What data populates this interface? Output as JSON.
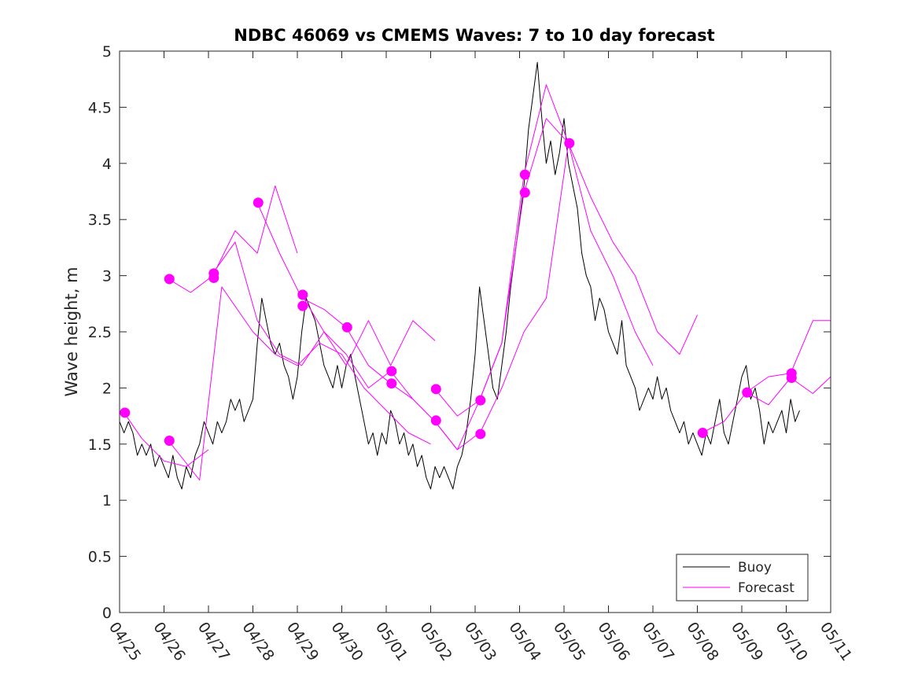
{
  "chart_data": {
    "type": "line",
    "title": "NDBC 46069 vs CMEMS Waves: 7 to 10 day forecast",
    "xlabel": "",
    "ylabel": "Wave height, m",
    "x_unit": "days since 04/25",
    "xlim": [
      0,
      16
    ],
    "ylim": [
      0,
      5
    ],
    "x_ticks": [
      {
        "x": 0,
        "label": "04/25"
      },
      {
        "x": 1,
        "label": "04/26"
      },
      {
        "x": 2,
        "label": "04/27"
      },
      {
        "x": 3,
        "label": "04/28"
      },
      {
        "x": 4,
        "label": "04/29"
      },
      {
        "x": 5,
        "label": "04/30"
      },
      {
        "x": 6,
        "label": "05/01"
      },
      {
        "x": 7,
        "label": "05/02"
      },
      {
        "x": 8,
        "label": "05/03"
      },
      {
        "x": 9,
        "label": "05/04"
      },
      {
        "x": 10,
        "label": "05/05"
      },
      {
        "x": 11,
        "label": "05/06"
      },
      {
        "x": 12,
        "label": "05/07"
      },
      {
        "x": 13,
        "label": "05/08"
      },
      {
        "x": 14,
        "label": "05/09"
      },
      {
        "x": 15,
        "label": "05/10"
      },
      {
        "x": 16,
        "label": "05/11"
      }
    ],
    "y_ticks": [
      {
        "y": 0,
        "label": "0"
      },
      {
        "y": 0.5,
        "label": "0.5"
      },
      {
        "y": 1,
        "label": "1"
      },
      {
        "y": 1.5,
        "label": "1.5"
      },
      {
        "y": 2,
        "label": "2"
      },
      {
        "y": 2.5,
        "label": "2.5"
      },
      {
        "y": 3,
        "label": "3"
      },
      {
        "y": 3.5,
        "label": "3.5"
      },
      {
        "y": 4,
        "label": "4"
      },
      {
        "y": 4.5,
        "label": "4.5"
      },
      {
        "y": 5,
        "label": "5"
      }
    ],
    "grid": false,
    "legend_position": "bottom-right",
    "legend": [
      {
        "label": "Buoy",
        "color": "#000000"
      },
      {
        "label": "Forecast",
        "color": "#ff00ff"
      }
    ],
    "colors": {
      "buoy": "#000000",
      "forecast": "#ff00ff",
      "axis": "#262626"
    },
    "series": [
      {
        "name": "Buoy",
        "color": "#000000",
        "x": [
          0,
          0.1,
          0.2,
          0.3,
          0.4,
          0.5,
          0.6,
          0.7,
          0.8,
          0.9,
          1.0,
          1.1,
          1.2,
          1.3,
          1.4,
          1.5,
          1.6,
          1.7,
          1.8,
          1.9,
          2.0,
          2.1,
          2.2,
          2.3,
          2.4,
          2.5,
          2.6,
          2.7,
          2.8,
          2.9,
          3.0,
          3.1,
          3.2,
          3.3,
          3.4,
          3.5,
          3.6,
          3.7,
          3.8,
          3.9,
          4.0,
          4.1,
          4.2,
          4.3,
          4.4,
          4.5,
          4.6,
          4.7,
          4.8,
          4.9,
          5.0,
          5.1,
          5.2,
          5.3,
          5.4,
          5.5,
          5.6,
          5.7,
          5.8,
          5.9,
          6.0,
          6.1,
          6.2,
          6.3,
          6.4,
          6.5,
          6.6,
          6.7,
          6.8,
          6.9,
          7.0,
          7.1,
          7.2,
          7.3,
          7.4,
          7.5,
          7.6,
          7.7,
          7.8,
          7.9,
          8.0,
          8.1,
          8.2,
          8.3,
          8.4,
          8.5,
          8.6,
          8.7,
          8.8,
          8.9,
          9.0,
          9.1,
          9.2,
          9.3,
          9.4,
          9.5,
          9.6,
          9.7,
          9.8,
          9.9,
          10.0,
          10.1,
          10.2,
          10.3,
          10.4,
          10.5,
          10.6,
          10.7,
          10.8,
          10.9,
          11.0,
          11.1,
          11.2,
          11.3,
          11.4,
          11.5,
          11.6,
          11.7,
          11.8,
          11.9,
          12.0,
          12.1,
          12.2,
          12.3,
          12.4,
          12.5,
          12.6,
          12.7,
          12.8,
          12.9,
          13.0,
          13.1,
          13.2,
          13.3,
          13.4,
          13.5,
          13.6,
          13.7,
          13.8,
          13.9,
          14.0,
          14.1,
          14.2,
          14.3,
          14.4,
          14.5,
          14.6,
          14.7,
          14.8,
          14.9,
          15.0,
          15.1,
          15.2,
          15.3
        ],
        "values": [
          1.7,
          1.6,
          1.7,
          1.6,
          1.4,
          1.5,
          1.4,
          1.5,
          1.3,
          1.4,
          1.3,
          1.2,
          1.4,
          1.2,
          1.1,
          1.3,
          1.2,
          1.4,
          1.5,
          1.7,
          1.6,
          1.5,
          1.7,
          1.6,
          1.7,
          1.9,
          1.8,
          1.9,
          1.7,
          1.8,
          1.9,
          2.4,
          2.8,
          2.6,
          2.4,
          2.3,
          2.4,
          2.2,
          2.1,
          1.9,
          2.1,
          2.5,
          2.8,
          2.7,
          2.6,
          2.4,
          2.2,
          2.1,
          2.0,
          2.2,
          2.0,
          2.2,
          2.3,
          2.1,
          1.9,
          1.7,
          1.5,
          1.6,
          1.4,
          1.6,
          1.5,
          1.8,
          1.7,
          1.5,
          1.6,
          1.4,
          1.5,
          1.3,
          1.4,
          1.2,
          1.1,
          1.3,
          1.2,
          1.3,
          1.2,
          1.1,
          1.3,
          1.4,
          1.6,
          1.9,
          2.3,
          2.9,
          2.6,
          2.3,
          2.0,
          1.9,
          2.2,
          2.5,
          2.9,
          3.2,
          3.5,
          3.8,
          4.3,
          4.6,
          4.9,
          4.4,
          4.0,
          4.2,
          3.9,
          4.1,
          4.4,
          4.0,
          3.8,
          3.6,
          3.2,
          3.0,
          2.9,
          2.6,
          2.8,
          2.7,
          2.5,
          2.4,
          2.3,
          2.6,
          2.2,
          2.1,
          2.0,
          1.8,
          1.9,
          2.0,
          1.9,
          2.1,
          1.9,
          2.0,
          1.8,
          1.7,
          1.6,
          1.7,
          1.5,
          1.6,
          1.5,
          1.4,
          1.6,
          1.5,
          1.7,
          1.9,
          1.6,
          1.5,
          1.7,
          1.9,
          2.1,
          2.2,
          1.9,
          2.0,
          1.8,
          1.5,
          1.7,
          1.6,
          1.7,
          1.8,
          1.6,
          1.9,
          1.7,
          1.8
        ]
      },
      {
        "name": "Forecast",
        "color": "#ff00ff",
        "x": [
          0.1,
          0.5,
          1.0,
          1.5,
          2.0
        ],
        "values": [
          1.78,
          1.55,
          1.35,
          1.3,
          1.45
        ]
      },
      {
        "name": "Forecast",
        "color": "#ff00ff",
        "x": [
          1.1,
          1.6,
          2.1,
          2.6,
          3.1,
          3.5,
          4.0
        ],
        "values": [
          2.97,
          2.85,
          3.0,
          3.4,
          3.2,
          3.8,
          3.2
        ]
      },
      {
        "name": "Forecast",
        "color": "#ff00ff",
        "x": [
          1.1,
          1.8,
          2.3,
          3.0,
          3.5,
          4.0,
          4.5,
          5.0,
          5.5,
          6.0,
          6.5,
          7.0
        ],
        "values": [
          1.53,
          1.18,
          2.9,
          2.5,
          2.3,
          2.2,
          2.4,
          2.3,
          2.0,
          1.8,
          1.6,
          1.5
        ]
      },
      {
        "name": "Forecast",
        "color": "#ff00ff",
        "x": [
          2.1,
          2.6,
          3.1,
          3.6,
          4.1,
          4.6,
          5.1,
          5.6,
          6.1,
          6.6,
          7.1
        ],
        "values": [
          3.02,
          3.3,
          2.6,
          2.3,
          2.2,
          2.5,
          2.2,
          2.6,
          2.2,
          2.6,
          2.42
        ]
      },
      {
        "name": "Forecast",
        "color": "#ff00ff",
        "x": [
          3.1,
          3.6,
          4.1,
          4.6,
          5.1,
          5.6,
          6.1,
          6.6,
          7.1,
          7.6,
          8.1
        ],
        "values": [
          3.65,
          3.2,
          2.8,
          2.7,
          2.54,
          2.2,
          2.04,
          1.9,
          1.7,
          1.45,
          1.6
        ]
      },
      {
        "name": "Forecast",
        "color": "#ff00ff",
        "x": [
          4.1,
          4.6,
          5.1,
          5.6,
          6.1,
          6.6,
          7.1,
          7.6,
          8.1,
          8.6,
          9.1,
          9.6,
          10.1
        ],
        "values": [
          2.83,
          2.5,
          2.3,
          2.0,
          2.15,
          1.9,
          1.7,
          1.45,
          1.89,
          2.4,
          3.9,
          4.7,
          4.18
        ]
      },
      {
        "name": "Forecast",
        "color": "#ff00ff",
        "x": [
          7.1,
          7.6,
          8.1,
          8.6,
          9.1,
          9.6,
          10.1,
          10.6,
          11.1,
          11.6,
          12.0
        ],
        "values": [
          1.99,
          1.75,
          1.89,
          2.4,
          3.74,
          4.4,
          4.18,
          3.4,
          3.0,
          2.5,
          2.2
        ]
      },
      {
        "name": "Forecast",
        "color": "#ff00ff",
        "x": [
          8.1,
          8.6,
          9.1,
          9.6,
          10.1,
          10.6,
          11.1,
          11.6,
          12.1,
          12.6,
          13.0
        ],
        "values": [
          1.59,
          2.0,
          2.5,
          2.8,
          4.18,
          3.7,
          3.3,
          3.0,
          2.5,
          2.3,
          2.65
        ]
      },
      {
        "name": "Forecast",
        "color": "#ff00ff",
        "x": [
          13.1,
          13.6,
          14.1,
          14.6,
          15.1,
          15.6,
          16.0
        ],
        "values": [
          1.6,
          1.7,
          1.96,
          2.1,
          2.13,
          2.6,
          2.6
        ]
      },
      {
        "name": "Forecast",
        "color": "#ff00ff",
        "x": [
          14.1,
          14.6,
          15.1,
          15.6,
          16.0
        ],
        "values": [
          1.96,
          1.85,
          2.09,
          1.95,
          2.1
        ]
      }
    ],
    "forecast_markers": [
      {
        "x": 0.12,
        "y": 1.78
      },
      {
        "x": 1.12,
        "y": 1.53
      },
      {
        "x": 1.12,
        "y": 2.97
      },
      {
        "x": 2.12,
        "y": 3.02
      },
      {
        "x": 2.12,
        "y": 2.98
      },
      {
        "x": 3.12,
        "y": 3.65
      },
      {
        "x": 4.12,
        "y": 2.83
      },
      {
        "x": 4.12,
        "y": 2.73
      },
      {
        "x": 5.12,
        "y": 2.54
      },
      {
        "x": 6.12,
        "y": 2.15
      },
      {
        "x": 6.12,
        "y": 2.04
      },
      {
        "x": 7.12,
        "y": 1.99
      },
      {
        "x": 7.12,
        "y": 1.71
      },
      {
        "x": 8.12,
        "y": 1.89
      },
      {
        "x": 8.12,
        "y": 1.59
      },
      {
        "x": 9.12,
        "y": 3.9
      },
      {
        "x": 9.12,
        "y": 3.74
      },
      {
        "x": 10.12,
        "y": 4.18
      },
      {
        "x": 13.12,
        "y": 1.6
      },
      {
        "x": 14.12,
        "y": 1.96
      },
      {
        "x": 15.12,
        "y": 2.13
      },
      {
        "x": 15.12,
        "y": 2.09
      }
    ]
  }
}
